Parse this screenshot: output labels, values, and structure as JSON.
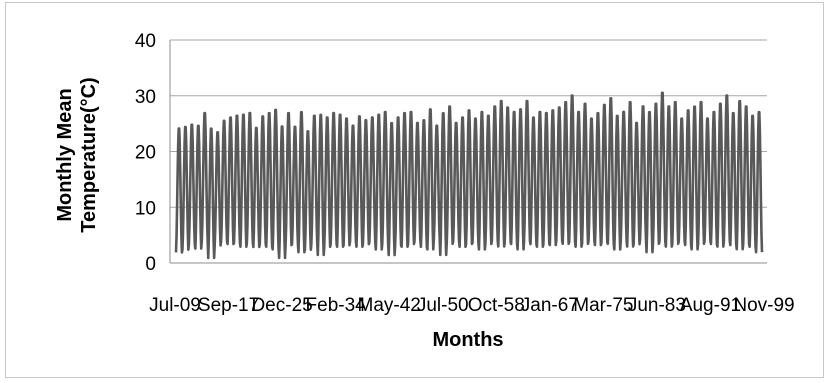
{
  "chart_data": {
    "type": "line",
    "title": "",
    "xlabel": "Months",
    "ylabel_lines": [
      "Monthly Mean",
      "Temperature(°C)"
    ],
    "ylim": [
      0,
      40
    ],
    "y_ticks": [
      0,
      10,
      20,
      30,
      40
    ],
    "grid": "horizontal",
    "legend": "none",
    "x_tick_labels": [
      "Jul-09",
      "Sep-17",
      "Dec-25",
      "Feb-34",
      "May-42",
      "Jul-50",
      "Oct-58",
      "Jan-67",
      "Mar-75",
      "Jun-83",
      "Aug-91",
      "Nov-99"
    ],
    "series": [
      {
        "color": "#595959",
        "x_start": "Jul-09",
        "x_end": "Nov-99",
        "period_months": 12,
        "annual_peaks": [
          24.5,
          24.8,
          25.2,
          25.0,
          27.3,
          24.5,
          23.8,
          25.9,
          26.5,
          26.8,
          27.0,
          27.3,
          24.6,
          26.7,
          27.3,
          27.9,
          24.9,
          27.3,
          24.8,
          27.5,
          24.0,
          26.8,
          27.0,
          26.5,
          27.3,
          27.0,
          26.3,
          25.0,
          26.7,
          26.0,
          26.5,
          27.0,
          27.5,
          25.5,
          26.5,
          27.3,
          27.5,
          25.5,
          26.0,
          28.0,
          25.0,
          27.3,
          28.5,
          25.5,
          26.5,
          27.8,
          26.3,
          27.5,
          26.8,
          28.5,
          29.5,
          28.3,
          27.5,
          28.0,
          29.5,
          26.5,
          27.5,
          27.3,
          27.8,
          28.3,
          29.3,
          30.5,
          27.5,
          29.0,
          26.3,
          27.3,
          28.8,
          30.0,
          26.8,
          27.5,
          29.3,
          25.5,
          28.5,
          27.5,
          29.0,
          31.0,
          28.5,
          29.3,
          26.3,
          27.8,
          28.5,
          29.3,
          26.3,
          27.5,
          29.0,
          30.5,
          27.3,
          29.5,
          28.5,
          26.8,
          27.5
        ],
        "annual_troughs": [
          1.5,
          2.0,
          3.0,
          2.2,
          3.5,
          0.5,
          2.8,
          3.5,
          3.0,
          3.2,
          2.5,
          3.3,
          2.5,
          3.0,
          2.5,
          2.0,
          0.5,
          2.8,
          3.0,
          1.5,
          2.0,
          3.0,
          1.0,
          2.5,
          3.0,
          2.5,
          2.8,
          3.5,
          2.5,
          3.0,
          3.3,
          2.0,
          3.0,
          1.0,
          2.8,
          2.5,
          3.0,
          3.5,
          2.5,
          2.0,
          3.8,
          1.0,
          3.0,
          3.5,
          2.5,
          3.0,
          3.2,
          2.0,
          3.0,
          3.5,
          2.5,
          3.3,
          3.0,
          2.0,
          3.5,
          3.0,
          2.5,
          3.0,
          2.8,
          3.5,
          3.0,
          3.3,
          2.5,
          3.0,
          3.5,
          2.8,
          3.2,
          3.0,
          2.0,
          3.5,
          2.5,
          3.0,
          3.8,
          1.5,
          3.0,
          3.3,
          2.5,
          3.0,
          3.5,
          2.8,
          2.0,
          3.0,
          3.5,
          3.0,
          2.5,
          3.5,
          2.8,
          2.0,
          3.0,
          2.5,
          1.5
        ]
      }
    ]
  }
}
